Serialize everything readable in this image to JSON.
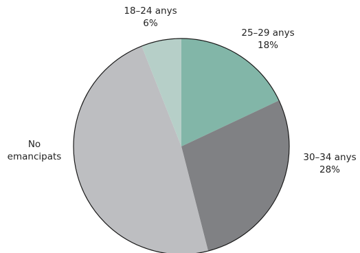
{
  "chart_data": {
    "type": "pie",
    "title": "",
    "start_angle_deg": 0,
    "direction": "clockwise",
    "slices": [
      {
        "label": "25–29 anys",
        "value": 18,
        "value_label": "18%",
        "color": "#82b6a8"
      },
      {
        "label": "30–34 anys",
        "value": 28,
        "value_label": "28%",
        "color": "#808184"
      },
      {
        "label": "No emancipats",
        "label_lines": [
          "No",
          "emancipats"
        ],
        "value": 48,
        "value_label": "",
        "color": "#bdbec1"
      },
      {
        "label": "18–24 anys",
        "value": 6,
        "value_label": "6%",
        "color": "#b6cfc8"
      }
    ]
  }
}
